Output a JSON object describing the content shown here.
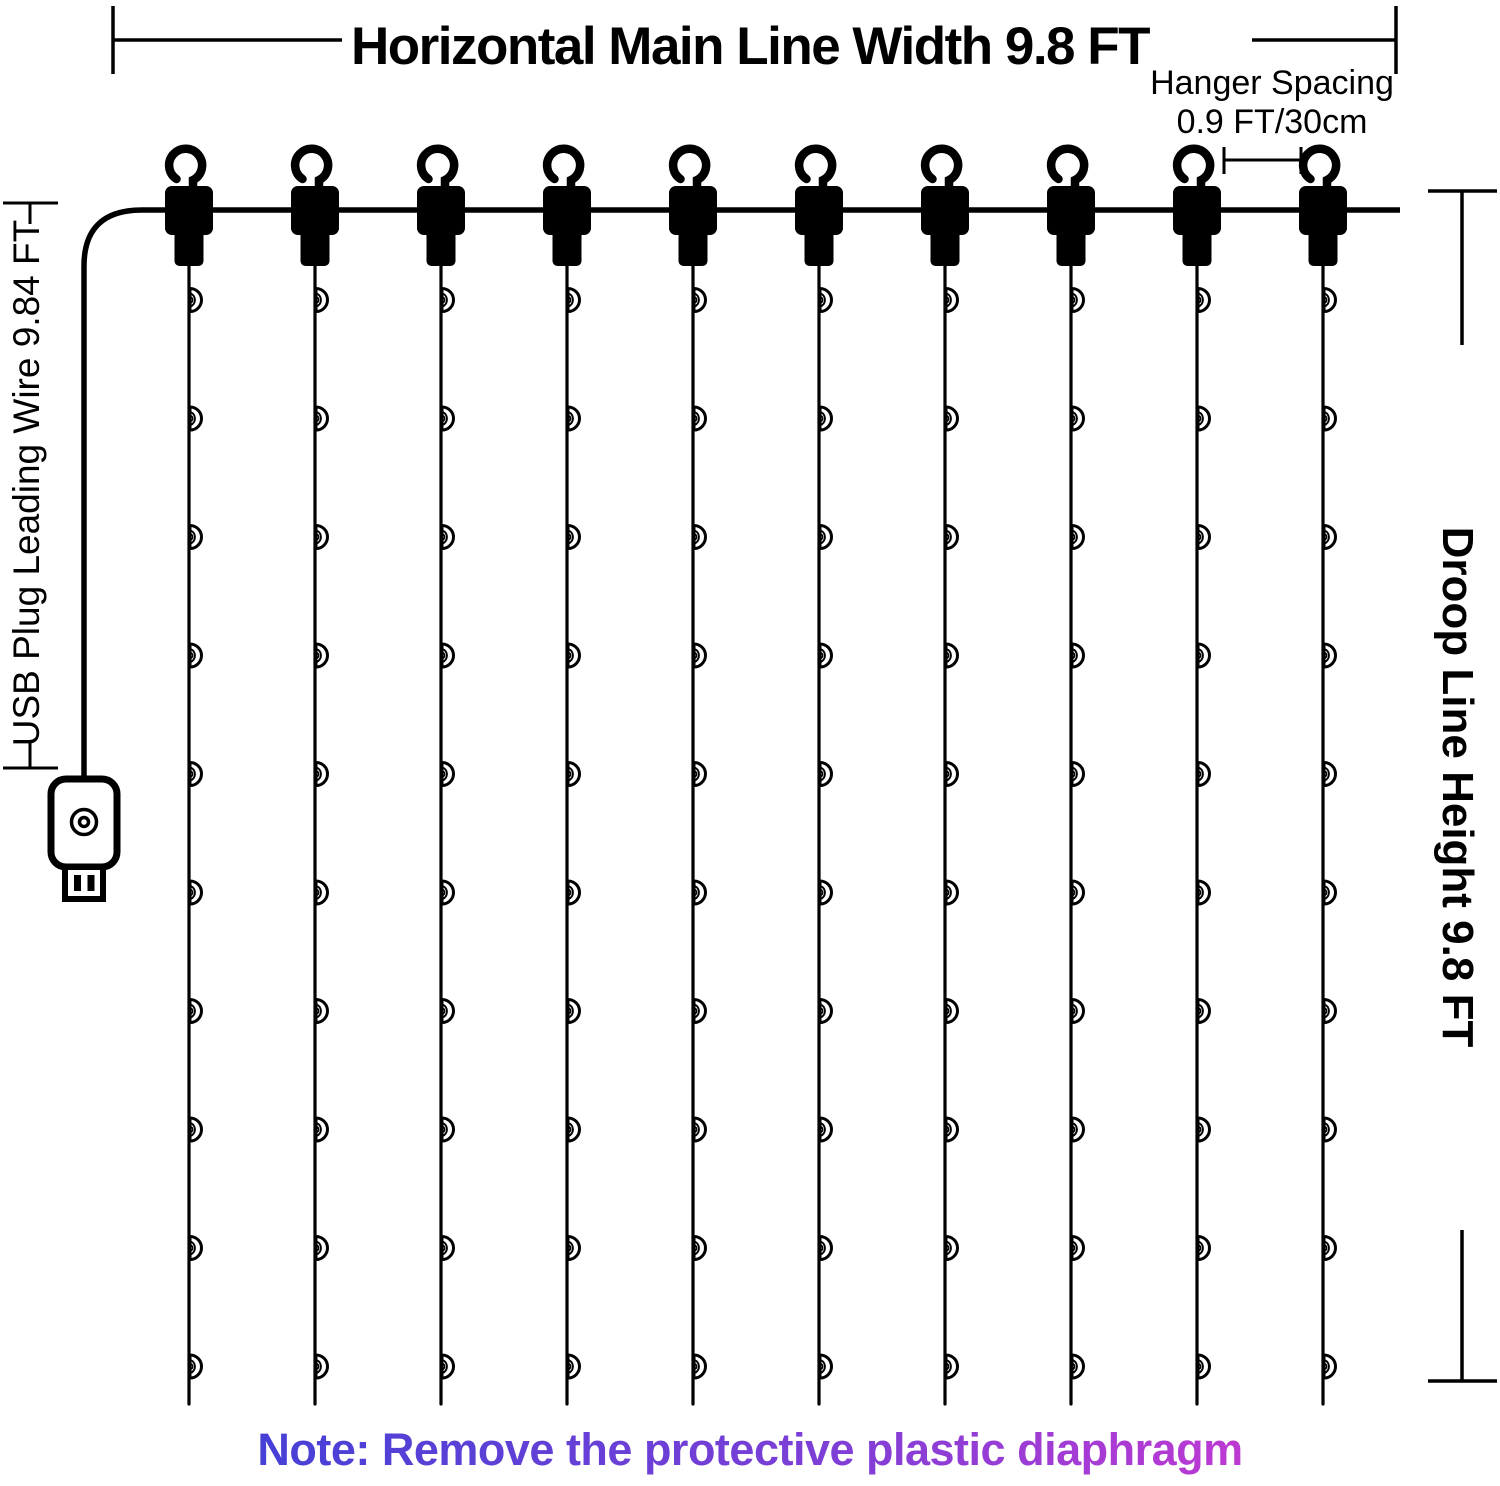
{
  "diagram": {
    "title": "Horizontal Main Line Width 9.8 FT",
    "hanger_spacing": {
      "line1": "Hanger Spacing",
      "line2": "0.9 FT/30cm"
    },
    "left_label": "USB Plug Leading Wire 9.84 FT",
    "right_label": "Droop Line Height 9.8 FT",
    "note": "Note: Remove the protective plastic diaphragm",
    "structure": {
      "hook_count": 10,
      "drop_line_count": 10,
      "bulbs_per_line": 10
    },
    "colors": {
      "line": "#000000",
      "note_gradient_start": "#4240d6",
      "note_gradient_end": "#c438d2"
    }
  }
}
